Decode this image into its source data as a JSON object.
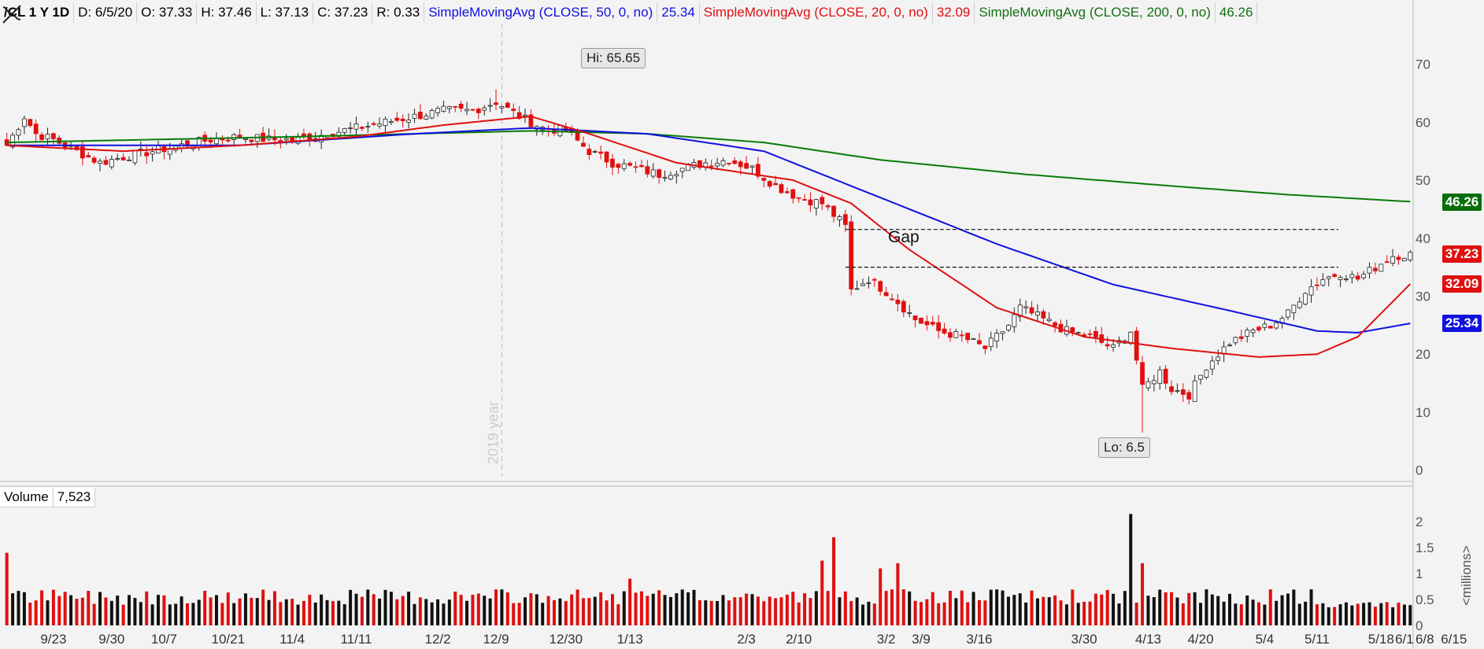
{
  "header": {
    "symbol": "/CL 1 Y 1D",
    "date": "D: 6/5/20",
    "open": "O: 37.33",
    "high": "H: 37.46",
    "low": "L: 37.13",
    "close": "C: 37.23",
    "range": "R: 0.33",
    "sma50_label": "SimpleMovingAvg (CLOSE, 50, 0, no)",
    "sma50_value": "25.34",
    "sma20_label": "SimpleMovingAvg (CLOSE, 20, 0, no)",
    "sma20_value": "32.09",
    "sma200_label": "SimpleMovingAvg (CLOSE, 200, 0, no)",
    "sma200_value": "46.26"
  },
  "volume_header": {
    "label": "Volume",
    "value": "7,523",
    "unit": "<millions>"
  },
  "annotations": {
    "hi": "Hi: 65.65",
    "lo": "Lo: 6.5",
    "gap": "Gap",
    "year": "2019 year"
  },
  "price_tags": [
    {
      "value": "46.26",
      "color": "#0a6e0a"
    },
    {
      "value": "37.23",
      "color": "#e01010"
    },
    {
      "value": "32.09",
      "color": "#e01010"
    },
    {
      "value": "25.34",
      "color": "#1010e0"
    }
  ],
  "chart_data": {
    "type": "candlestick",
    "y_ticks": [
      0,
      10,
      20,
      30,
      40,
      50,
      60,
      70
    ],
    "volume_ticks": [
      "0",
      "0.5",
      "1",
      "1.5",
      "2"
    ],
    "ylim": [
      -1,
      77
    ],
    "volume_ylim": [
      0,
      2.2
    ],
    "x_tick_labels": [
      "9/23",
      "9/30",
      "10/7",
      "10/21",
      "11/4",
      "11/11",
      "12/2",
      "12/9",
      "12/30",
      "1/13",
      "2/3",
      "2/10",
      "3/2",
      "3/9",
      "3/16",
      "3/30",
      "4/13",
      "4/20",
      "5/4",
      "5/11",
      "5/18",
      "6/1",
      "6/8",
      "6/15"
    ],
    "gap_lines": [
      41.5,
      35.0
    ],
    "keyframes": [
      [
        0,
        56
      ],
      [
        3,
        61
      ],
      [
        5,
        58
      ],
      [
        8,
        57
      ],
      [
        12,
        55
      ],
      [
        16,
        53
      ],
      [
        20,
        54
      ],
      [
        25,
        55
      ],
      [
        30,
        56
      ],
      [
        35,
        57
      ],
      [
        40,
        57.5
      ],
      [
        45,
        57
      ],
      [
        50,
        57
      ],
      [
        55,
        58
      ],
      [
        60,
        59
      ],
      [
        65,
        60
      ],
      [
        70,
        61
      ],
      [
        75,
        62
      ],
      [
        80,
        62
      ],
      [
        84,
        63.5
      ],
      [
        88,
        61
      ],
      [
        92,
        59
      ],
      [
        96,
        58.5
      ],
      [
        100,
        55
      ],
      [
        104,
        53
      ],
      [
        108,
        52
      ],
      [
        112,
        51
      ],
      [
        116,
        52
      ],
      [
        120,
        53
      ],
      [
        124,
        53.5
      ],
      [
        128,
        52
      ],
      [
        132,
        49
      ],
      [
        136,
        47
      ],
      [
        140,
        46
      ],
      [
        144,
        42
      ],
      [
        145,
        31
      ],
      [
        148,
        33
      ],
      [
        152,
        30
      ],
      [
        156,
        26
      ],
      [
        160,
        24
      ],
      [
        164,
        23
      ],
      [
        168,
        21
      ],
      [
        172,
        25
      ],
      [
        174,
        28
      ],
      [
        178,
        26
      ],
      [
        182,
        24
      ],
      [
        186,
        23
      ],
      [
        190,
        21
      ],
      [
        193,
        24
      ],
      [
        195,
        14
      ],
      [
        198,
        17
      ],
      [
        200,
        14
      ],
      [
        203,
        13
      ],
      [
        206,
        18
      ],
      [
        210,
        22
      ],
      [
        214,
        24
      ],
      [
        217,
        25
      ],
      [
        220,
        27
      ],
      [
        223,
        31
      ],
      [
        226,
        33
      ],
      [
        229,
        34
      ],
      [
        232,
        33
      ],
      [
        235,
        35
      ],
      [
        238,
        37
      ],
      [
        241,
        37.2
      ]
    ],
    "sma50_knots": [
      [
        0,
        56
      ],
      [
        40,
        56
      ],
      [
        70,
        58
      ],
      [
        90,
        59
      ],
      [
        110,
        58
      ],
      [
        130,
        55
      ],
      [
        150,
        47
      ],
      [
        170,
        39
      ],
      [
        190,
        32
      ],
      [
        210,
        27.5
      ],
      [
        225,
        24
      ],
      [
        232,
        23.7
      ],
      [
        241,
        25.3
      ]
    ],
    "sma20_knots": [
      [
        0,
        56
      ],
      [
        20,
        55
      ],
      [
        40,
        56
      ],
      [
        60,
        57.5
      ],
      [
        75,
        59.5
      ],
      [
        90,
        61
      ],
      [
        100,
        58
      ],
      [
        115,
        53
      ],
      [
        135,
        50
      ],
      [
        145,
        46
      ],
      [
        155,
        38
      ],
      [
        170,
        28
      ],
      [
        185,
        23
      ],
      [
        200,
        21
      ],
      [
        215,
        19.5
      ],
      [
        225,
        20
      ],
      [
        232,
        23
      ],
      [
        241,
        32.1
      ]
    ],
    "sma200_knots": [
      [
        0,
        56.5
      ],
      [
        50,
        57.5
      ],
      [
        90,
        58.5
      ],
      [
        110,
        58
      ],
      [
        130,
        56.5
      ],
      [
        150,
        53.5
      ],
      [
        175,
        51
      ],
      [
        200,
        49
      ],
      [
        220,
        47.5
      ],
      [
        241,
        46.3
      ]
    ],
    "volume_spikes": {
      "0": 1.4,
      "107": 0.9,
      "140": 1.25,
      "142": 1.7,
      "193": 2.15,
      "195": 1.2,
      "150": 1.1,
      "153": 1.2
    }
  }
}
